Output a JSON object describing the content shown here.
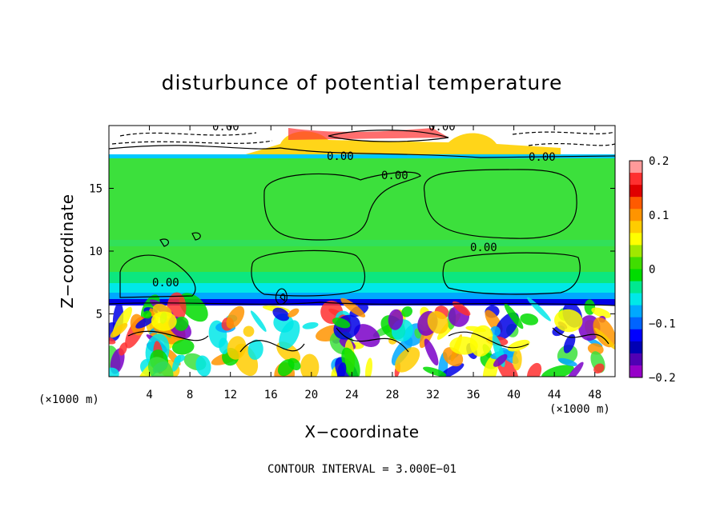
{
  "chart_data": {
    "type": "heatmap",
    "title": "disturbunce of potential temperature",
    "xlabel": "X−coordinate",
    "ylabel": "Z−coordinate",
    "x_unit_label": "(×1000 m)",
    "x_unit_label_right": "(×1000 m)",
    "xlim": [
      0,
      50
    ],
    "ylim": [
      0,
      20
    ],
    "x_ticks": [
      4,
      8,
      12,
      16,
      20,
      24,
      28,
      32,
      36,
      40,
      44,
      48
    ],
    "y_ticks": [
      5,
      10,
      15
    ],
    "colorbar": {
      "range": [
        -0.2,
        0.2
      ],
      "tick_values": [
        0.2,
        0.1,
        0,
        -0.1,
        -0.2
      ],
      "tick_labels": [
        "0.2",
        "0.1",
        "0",
        "−0.1",
        "−0.2"
      ],
      "colors": [
        "#ff9a9a",
        "#ff3030",
        "#e00000",
        "#ff5a00",
        "#ff9400",
        "#ffcc00",
        "#ffff00",
        "#a0e800",
        "#40dd00",
        "#00dc00",
        "#00e890",
        "#00e8e8",
        "#00a8ff",
        "#0064ff",
        "#0000ff",
        "#0000b4",
        "#5000b4",
        "#9600c8"
      ]
    },
    "contour_labels": [
      "0.00",
      "0.00",
      "0.00",
      "0.00",
      "0.00",
      "0.00",
      "0.00",
      "0.00"
    ],
    "annotation": "CONTOUR INTERVAL = 3.000E−01",
    "grid": false
  }
}
